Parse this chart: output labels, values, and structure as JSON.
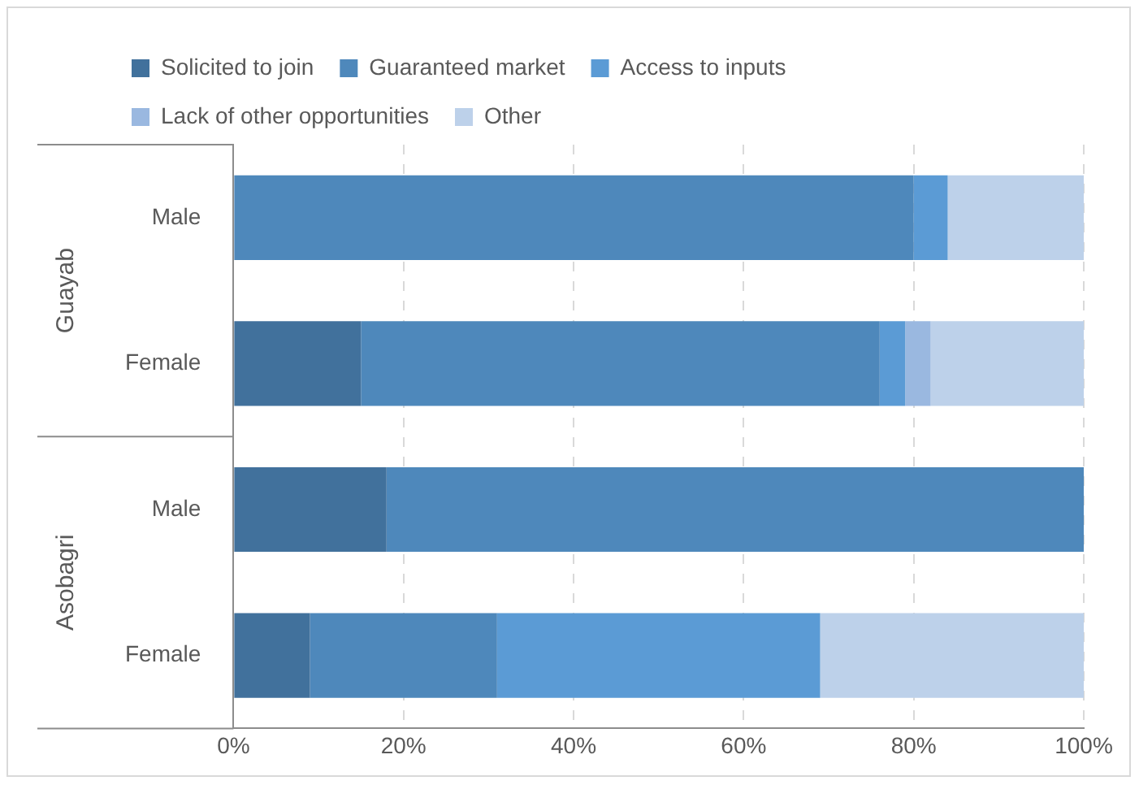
{
  "chart_data": {
    "type": "bar",
    "orientation": "horizontal",
    "stacked": true,
    "categories": [
      "Male",
      "Female",
      "Male",
      "Female"
    ],
    "annotations": [
      "Guayab",
      "Asobagri"
    ],
    "series": [
      {
        "name": "Solicited to join",
        "color": "#41719c",
        "values": [
          0,
          15,
          18,
          9
        ]
      },
      {
        "name": "Guaranteed market",
        "color": "#4e88bb",
        "values": [
          80,
          61,
          82,
          22
        ]
      },
      {
        "name": "Access to inputs",
        "color": "#5b9bd5",
        "values": [
          4,
          3,
          0,
          38
        ]
      },
      {
        "name": "Lack of other opportunities",
        "color": "#9ab8e0",
        "values": [
          0,
          3,
          0,
          0
        ]
      },
      {
        "name": "Other",
        "color": "#bdd1ea",
        "values": [
          16,
          18,
          0,
          31
        ]
      }
    ],
    "xlim": [
      0,
      100
    ],
    "xticks": [
      {
        "value": 0,
        "label": "0%"
      },
      {
        "value": 20,
        "label": "20%"
      },
      {
        "value": 40,
        "label": "40%"
      },
      {
        "value": 60,
        "label": "60%"
      },
      {
        "value": 80,
        "label": "80%"
      },
      {
        "value": 100,
        "label": "100%"
      }
    ],
    "grid": "x",
    "legend": "top"
  }
}
